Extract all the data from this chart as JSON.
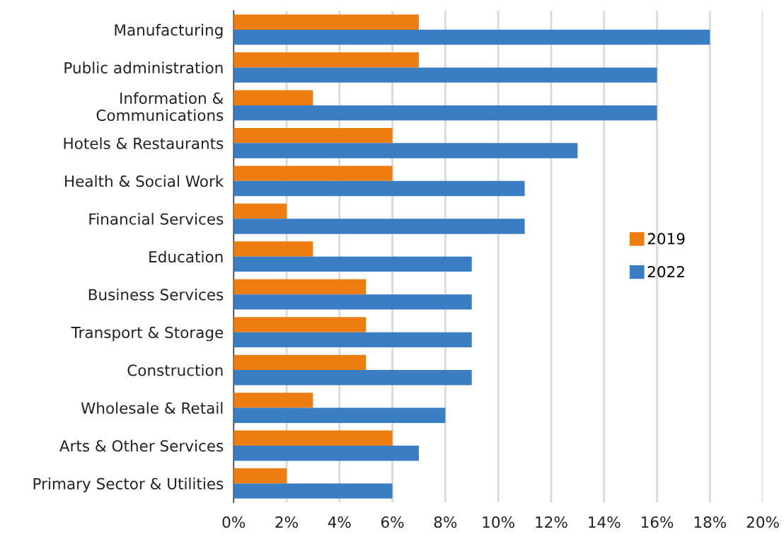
{
  "chart_data": {
    "type": "bar",
    "orientation": "horizontal",
    "categories": [
      "Manufacturing",
      "Public administration",
      "Information &\nCommunications",
      "Hotels & Restaurants",
      "Health & Social Work",
      "Financial Services",
      "Education",
      "Business Services",
      "Transport & Storage",
      "Construction",
      "Wholesale & Retail",
      "Arts & Other Services",
      "Primary Sector & Utilities"
    ],
    "series": [
      {
        "name": "2019",
        "color": "#ee7d11",
        "values": [
          7,
          7,
          3,
          6,
          6,
          2,
          3,
          5,
          5,
          5,
          3,
          6,
          2
        ]
      },
      {
        "name": "2022",
        "color": "#3a7dc2",
        "values": [
          18,
          16,
          16,
          13,
          11,
          11,
          9,
          9,
          9,
          9,
          8,
          7,
          6
        ]
      }
    ],
    "xlim": [
      0,
      20
    ],
    "xticks": [
      {
        "value": 0,
        "label": "0%"
      },
      {
        "value": 2,
        "label": "2%"
      },
      {
        "value": 4,
        "label": "4%"
      },
      {
        "value": 6,
        "label": "6%"
      },
      {
        "value": 8,
        "label": "8%"
      },
      {
        "value": 10,
        "label": "10%"
      },
      {
        "value": 12,
        "label": "12%"
      },
      {
        "value": 14,
        "label": "14%"
      },
      {
        "value": 16,
        "label": "16%"
      },
      {
        "value": 18,
        "label": "18%"
      },
      {
        "value": 20,
        "label": "20%"
      }
    ],
    "grid": "x",
    "legend": "right"
  }
}
